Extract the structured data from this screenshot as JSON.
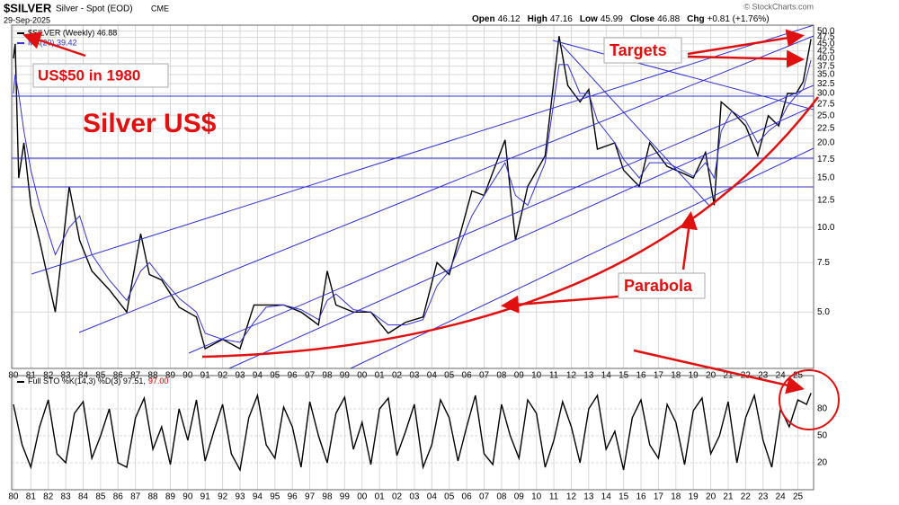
{
  "header": {
    "symbol": "$SILVER",
    "name": "Silver - Spot (EOD)",
    "exchange": "CME",
    "date": "29-Sep-2025",
    "ohlc": [
      {
        "label": "Open",
        "value": "46.12"
      },
      {
        "label": "High",
        "value": "47.16"
      },
      {
        "label": "Low",
        "value": "45.99"
      },
      {
        "label": "Close",
        "value": "46.88"
      },
      {
        "label": "Chg",
        "value": "+0.81 (+1.76%)"
      }
    ],
    "copyright": "© StockCharts.com"
  },
  "annotations": {
    "title": "Silver US$",
    "note_1980": "US$50 in 1980",
    "targets": "Targets",
    "parabola": "Parabola"
  },
  "chart_data": [
    {
      "type": "line",
      "log_scale": true,
      "grid": true,
      "x": [
        1980.0,
        1980.1,
        1980.3,
        1980.6,
        1981.0,
        1981.5,
        1982.4,
        1983.2,
        1983.8,
        1984.5,
        1985.5,
        1986.5,
        1987.3,
        1987.8,
        1988.5,
        1989.5,
        1990.5,
        1991.0,
        1992.0,
        1993.0,
        1993.8,
        1994.5,
        1995.5,
        1996.5,
        1997.5,
        1998.0,
        1998.5,
        1999.5,
        2000.5,
        2001.5,
        2002.5,
        2003.5,
        2004.3,
        2005.0,
        2006.3,
        2007.0,
        2008.2,
        2008.8,
        2009.5,
        2010.5,
        2011.3,
        2011.8,
        2012.5,
        2013.0,
        2013.5,
        2014.5,
        2015.0,
        2015.9,
        2016.5,
        2017.5,
        2018.5,
        2019.0,
        2019.7,
        2020.2,
        2020.6,
        2021.2,
        2022.0,
        2022.7,
        2023.3,
        2023.9,
        2024.4,
        2024.9,
        2025.3,
        2025.75
      ],
      "series": [
        {
          "name": "$SILVER (Weekly) 46.88",
          "color": "#000000",
          "values": [
            40,
            45,
            15,
            20,
            12,
            9,
            5,
            14,
            9,
            7,
            6,
            5,
            9.5,
            6.8,
            6.5,
            5.2,
            4.8,
            3.7,
            4,
            3.7,
            5.3,
            5.3,
            5.3,
            5,
            4.5,
            7,
            5.3,
            5,
            5,
            4.2,
            4.6,
            4.8,
            7.5,
            6.8,
            13.5,
            13,
            20.5,
            9,
            14,
            18,
            48,
            32,
            28,
            31,
            19,
            20,
            16,
            14,
            20,
            16.5,
            15.5,
            15,
            18.5,
            12,
            28,
            26,
            23,
            18,
            25,
            23,
            30,
            30,
            33,
            46.88
          ]
        },
        {
          "name": "MA(20) 39.42",
          "color": "#3333cc",
          "values": [
            30,
            35,
            30,
            22,
            16,
            12,
            8,
            10,
            11,
            8,
            6.5,
            5.5,
            7,
            7.5,
            6.6,
            5.6,
            5,
            4.2,
            4,
            3.9,
            4.6,
            5.2,
            5.3,
            5.1,
            4.7,
            5.5,
            5.8,
            5.1,
            5,
            4.5,
            4.5,
            4.7,
            6.2,
            7,
            11,
            13,
            17,
            13,
            12,
            17,
            38,
            38,
            30,
            30,
            24,
            20,
            17.5,
            15,
            17,
            17,
            15.8,
            15.2,
            17,
            15,
            22,
            26,
            24,
            20,
            22,
            23.5,
            27,
            29.5,
            31,
            39.42
          ]
        }
      ],
      "xlim": [
        1979.9,
        2025.9
      ],
      "xticks": [
        {
          "value": 1980,
          "label": "80"
        },
        {
          "value": 1981,
          "label": "81"
        },
        {
          "value": 1982,
          "label": "82"
        },
        {
          "value": 1983,
          "label": "83"
        },
        {
          "value": 1984,
          "label": "84"
        },
        {
          "value": 1985,
          "label": "85"
        },
        {
          "value": 1986,
          "label": "86"
        },
        {
          "value": 1987,
          "label": "87"
        },
        {
          "value": 1988,
          "label": "88"
        },
        {
          "value": 1989,
          "label": "89"
        },
        {
          "value": 1990,
          "label": "90"
        },
        {
          "value": 1991,
          "label": "91"
        },
        {
          "value": 1992,
          "label": "92"
        },
        {
          "value": 1993,
          "label": "93"
        },
        {
          "value": 1994,
          "label": "94"
        },
        {
          "value": 1995,
          "label": "95"
        },
        {
          "value": 1996,
          "label": "96"
        },
        {
          "value": 1997,
          "label": "97"
        },
        {
          "value": 1998,
          "label": "98"
        },
        {
          "value": 1999,
          "label": "99"
        },
        {
          "value": 2000,
          "label": "00"
        },
        {
          "value": 2001,
          "label": "01"
        },
        {
          "value": 2002,
          "label": "02"
        },
        {
          "value": 2003,
          "label": "03"
        },
        {
          "value": 2004,
          "label": "04"
        },
        {
          "value": 2005,
          "label": "05"
        },
        {
          "value": 2006,
          "label": "06"
        },
        {
          "value": 2007,
          "label": "07"
        },
        {
          "value": 2008,
          "label": "08"
        },
        {
          "value": 2009,
          "label": "09"
        },
        {
          "value": 2010,
          "label": "10"
        },
        {
          "value": 2011,
          "label": "11"
        },
        {
          "value": 2012,
          "label": "12"
        },
        {
          "value": 2013,
          "label": "13"
        },
        {
          "value": 2014,
          "label": "14"
        },
        {
          "value": 2015,
          "label": "15"
        },
        {
          "value": 2016,
          "label": "16"
        },
        {
          "value": 2017,
          "label": "17"
        },
        {
          "value": 2018,
          "label": "18"
        },
        {
          "value": 2019,
          "label": "19"
        },
        {
          "value": 2020,
          "label": "20"
        },
        {
          "value": 2021,
          "label": "21"
        },
        {
          "value": 2022,
          "label": "22"
        },
        {
          "value": 2023,
          "label": "23"
        },
        {
          "value": 2024,
          "label": "24"
        },
        {
          "value": 2025,
          "label": "25"
        }
      ],
      "ylim": [
        3.15,
        52.5
      ],
      "yticks": [
        {
          "value": 5,
          "label": "5.0"
        },
        {
          "value": 7.5,
          "label": "7.5"
        },
        {
          "value": 10,
          "label": "10.0"
        },
        {
          "value": 12.5,
          "label": "12.5"
        },
        {
          "value": 15,
          "label": "15.0"
        },
        {
          "value": 17.5,
          "label": "17.5"
        },
        {
          "value": 20,
          "label": "20.0"
        },
        {
          "value": 22.5,
          "label": "22.5"
        },
        {
          "value": 25,
          "label": "25.0"
        },
        {
          "value": 27.5,
          "label": "27.5"
        },
        {
          "value": 30,
          "label": "30.0"
        },
        {
          "value": 32.5,
          "label": "32.5"
        },
        {
          "value": 35,
          "label": "35.0"
        },
        {
          "value": 37.5,
          "label": "37.5"
        },
        {
          "value": 40,
          "label": "40.0"
        },
        {
          "value": 42.5,
          "label": "42.5"
        },
        {
          "value": 45,
          "label": "45.0"
        },
        {
          "value": 47.5,
          "label": "47.5"
        },
        {
          "value": 50,
          "label": "50.0"
        }
      ]
    },
    {
      "type": "line",
      "grid": true,
      "title": "Full STO %K(14,3) %D(3) 97.51,",
      "d_label": "97.00",
      "x": [
        1980,
        1980.5,
        1981,
        1981.5,
        1982,
        1982.5,
        1983,
        1983.5,
        1984,
        1984.5,
        1985,
        1985.5,
        1986,
        1986.5,
        1987,
        1987.5,
        1988,
        1988.5,
        1989,
        1989.5,
        1990,
        1990.5,
        1991,
        1991.5,
        1992,
        1992.5,
        1993,
        1993.5,
        1994,
        1994.5,
        1995,
        1995.5,
        1996,
        1996.5,
        1997,
        1997.5,
        1998,
        1998.5,
        1999,
        1999.5,
        2000,
        2000.5,
        2001,
        2001.5,
        2002,
        2002.5,
        2003,
        2003.5,
        2004,
        2004.5,
        2005,
        2005.5,
        2006,
        2006.5,
        2007,
        2007.5,
        2008,
        2008.5,
        2009,
        2009.5,
        2010,
        2010.5,
        2011,
        2011.5,
        2012,
        2012.5,
        2013,
        2013.5,
        2014,
        2014.5,
        2015,
        2015.5,
        2016,
        2016.5,
        2017,
        2017.5,
        2018,
        2018.5,
        2019,
        2019.5,
        2020,
        2020.5,
        2021,
        2021.5,
        2022,
        2022.5,
        2023,
        2023.5,
        2024,
        2024.5,
        2025,
        2025.5,
        2025.75
      ],
      "series": [
        {
          "name": "%K",
          "color": "#000000",
          "values": [
            85,
            40,
            15,
            60,
            90,
            30,
            20,
            75,
            88,
            25,
            50,
            80,
            20,
            15,
            70,
            92,
            35,
            60,
            18,
            80,
            45,
            90,
            22,
            55,
            85,
            30,
            12,
            70,
            95,
            40,
            25,
            82,
            60,
            15,
            88,
            50,
            20,
            75,
            93,
            35,
            65,
            18,
            80,
            92,
            28,
            55,
            85,
            15,
            40,
            90,
            70,
            22,
            60,
            95,
            30,
            18,
            85,
            50,
            25,
            90,
            75,
            15,
            45,
            88,
            60,
            20,
            80,
            95,
            35,
            55,
            12,
            70,
            90,
            40,
            25,
            85,
            65,
            18,
            78,
            92,
            30,
            50,
            88,
            20,
            70,
            95,
            45,
            15,
            80,
            60,
            90,
            85,
            97.51
          ]
        }
      ],
      "xlim": [
        1979.9,
        2025.9
      ],
      "ylim": [
        -10,
        117
      ],
      "yticks": [
        20,
        50,
        80
      ]
    }
  ]
}
